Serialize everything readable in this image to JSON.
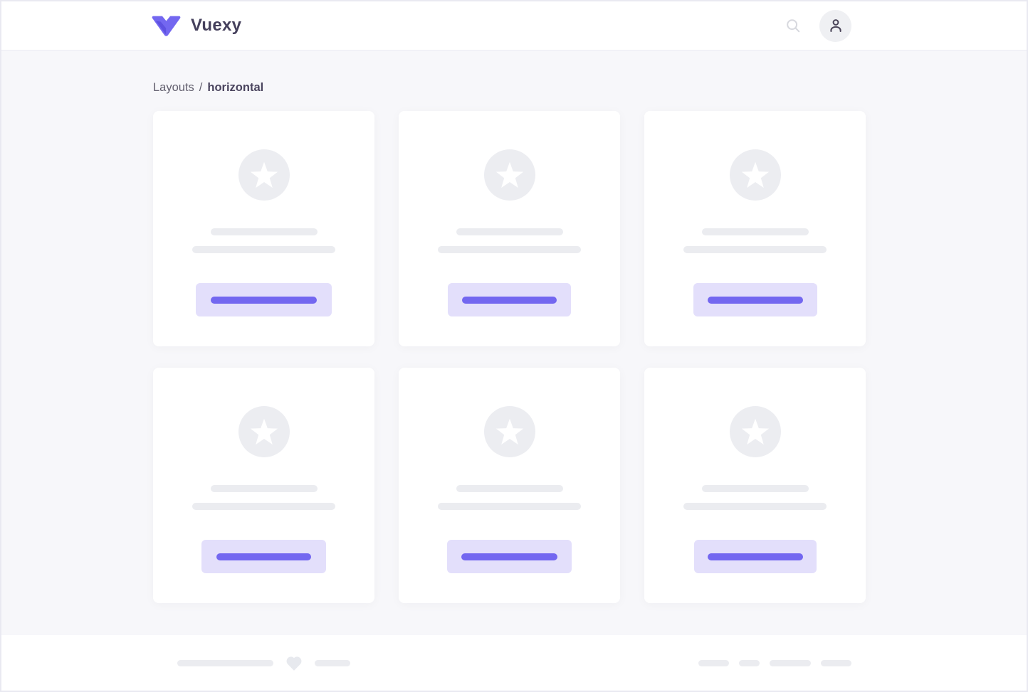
{
  "header": {
    "brand": "Vuexy"
  },
  "breadcrumb": {
    "section": "Layouts",
    "separator": "/",
    "current": "horizontal"
  },
  "card_placeholder": {
    "line1_width": 150,
    "line2_width": 201
  },
  "cards": [
    {
      "button_width": 191,
      "button_line_width": 149
    },
    {
      "button_width": 173,
      "button_line_width": 133
    },
    {
      "button_width": 174,
      "button_line_width": 134
    },
    {
      "button_width": 175,
      "button_line_width": 133
    },
    {
      "button_width": 175,
      "button_line_width": 135
    },
    {
      "button_width": 172,
      "button_line_width": 134
    }
  ],
  "footer": {
    "left_line1_width": 135,
    "left_line2_width": 50,
    "right_pill_widths": [
      43,
      29,
      58,
      43
    ]
  },
  "icons": {
    "logo": "vuexy-v-logo",
    "search": "search-icon",
    "user": "user-icon",
    "star": "star-icon",
    "heart": "heart-icon"
  },
  "colors": {
    "primary": "#7367f0",
    "primary_light": "#e3dffb",
    "ph_gray": "#ebecf0",
    "circle_gray": "#ecedf1",
    "heart_gray": "#e7e9ee",
    "content_bg": "#f7f7fa",
    "frame_border": "#e9e9f1",
    "brand_text": "#45405c"
  }
}
